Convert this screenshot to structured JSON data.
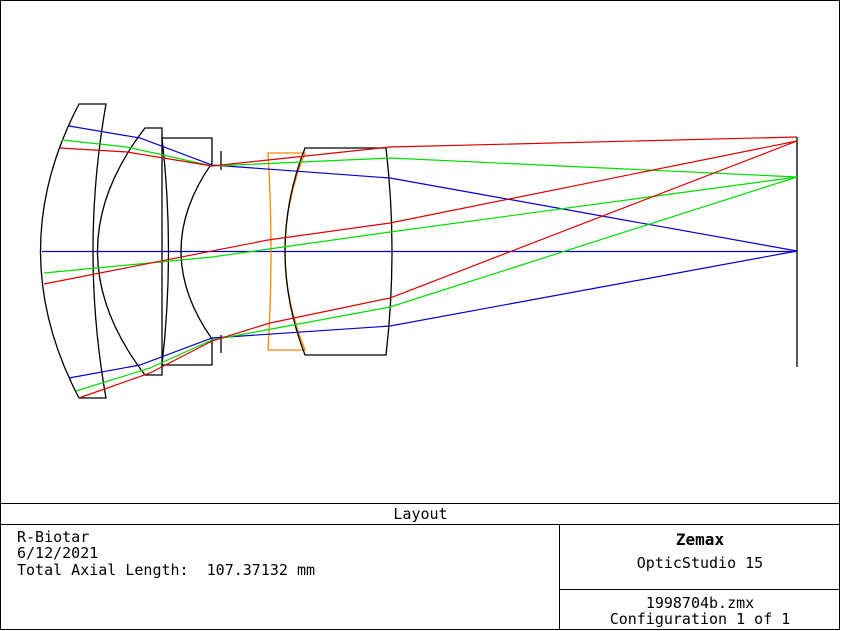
{
  "caption": "Layout",
  "info": {
    "lens_name": "R-Biotar",
    "date": "6/12/2021",
    "axial_length_label": "Total Axial Length:",
    "axial_length_value": "107.37132 mm"
  },
  "branding": {
    "brand": "Zemax",
    "product": "OpticStudio 15"
  },
  "file": {
    "filename": "1998704b.zmx",
    "configuration": "Configuration 1 of 1"
  },
  "colors": {
    "axis_field": "#0000cc",
    "mid_field": "#00dd00",
    "edge_field": "#dd0000",
    "highlight_element": "#ff8800",
    "outline": "#000000"
  }
}
